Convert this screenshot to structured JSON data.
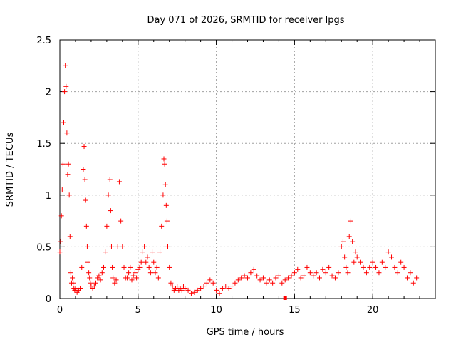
{
  "chart_data": {
    "type": "scatter",
    "title": "Day 071 of 2026, SRMTID for receiver lpgs",
    "xlabel": "GPS time / hours",
    "ylabel": "SRMTID / TECUs",
    "xlim": [
      0,
      24
    ],
    "ylim": [
      0,
      2.5
    ],
    "xticks": [
      0,
      5,
      10,
      15,
      20
    ],
    "yticks": [
      0,
      0.5,
      1,
      1.5,
      2,
      2.5
    ],
    "ytick_labels": [
      "0",
      "0.5",
      "1",
      "1.5",
      "2",
      "2.5"
    ],
    "grid": true,
    "marker": "+",
    "color": "#ff0000",
    "series": [
      {
        "name": "SRMTID",
        "x": [
          0.0,
          0.05,
          0.1,
          0.15,
          0.2,
          0.25,
          0.3,
          0.35,
          0.4,
          0.45,
          0.5,
          0.55,
          0.6,
          0.65,
          0.7,
          0.75,
          0.8,
          0.85,
          0.9,
          0.95,
          1.0,
          1.1,
          1.2,
          1.3,
          1.4,
          1.5,
          1.55,
          1.6,
          1.65,
          1.7,
          1.75,
          1.8,
          1.85,
          1.9,
          1.95,
          2.0,
          2.1,
          2.2,
          2.3,
          2.4,
          2.5,
          2.6,
          2.7,
          2.8,
          2.9,
          3.0,
          3.1,
          3.2,
          3.25,
          3.3,
          3.35,
          3.4,
          3.5,
          3.6,
          3.7,
          3.8,
          3.9,
          4.0,
          4.1,
          4.2,
          4.3,
          4.4,
          4.5,
          4.6,
          4.7,
          4.8,
          4.9,
          5.0,
          5.1,
          5.2,
          5.3,
          5.4,
          5.5,
          5.6,
          5.7,
          5.8,
          5.9,
          6.0,
          6.1,
          6.2,
          6.3,
          6.4,
          6.5,
          6.6,
          6.65,
          6.7,
          6.75,
          6.8,
          6.85,
          6.9,
          7.0,
          7.1,
          7.2,
          7.3,
          7.4,
          7.5,
          7.6,
          7.7,
          7.8,
          7.9,
          8.0,
          8.2,
          8.4,
          8.6,
          8.8,
          9.0,
          9.2,
          9.4,
          9.6,
          9.8,
          10.0,
          10.2,
          10.4,
          10.6,
          10.8,
          11.0,
          11.2,
          11.4,
          11.6,
          11.8,
          12.0,
          12.2,
          12.4,
          12.6,
          12.8,
          13.0,
          13.2,
          13.4,
          13.6,
          13.8,
          14.0,
          14.2,
          14.4,
          14.6,
          14.8,
          15.0,
          15.2,
          15.4,
          15.6,
          15.8,
          16.0,
          16.2,
          16.4,
          16.6,
          16.8,
          17.0,
          17.2,
          17.4,
          17.6,
          17.8,
          18.0,
          18.1,
          18.2,
          18.3,
          18.4,
          18.5,
          18.6,
          18.7,
          18.8,
          18.9,
          19.0,
          19.2,
          19.4,
          19.6,
          19.8,
          20.0,
          20.2,
          20.4,
          20.6,
          20.8,
          21.0,
          21.2,
          21.4,
          21.6,
          21.8,
          22.0,
          22.2,
          22.4,
          22.6,
          22.8
        ],
        "y": [
          0.45,
          0.55,
          0.8,
          1.05,
          1.3,
          1.7,
          2.0,
          2.25,
          2.05,
          1.6,
          1.2,
          1.3,
          1.0,
          0.6,
          0.25,
          0.15,
          0.2,
          0.15,
          0.1,
          0.08,
          0.1,
          0.06,
          0.08,
          0.1,
          0.3,
          1.25,
          1.47,
          1.15,
          0.95,
          0.7,
          0.5,
          0.35,
          0.25,
          0.2,
          0.15,
          0.12,
          0.1,
          0.12,
          0.15,
          0.2,
          0.22,
          0.18,
          0.25,
          0.3,
          0.45,
          0.7,
          1.0,
          1.15,
          0.85,
          0.5,
          0.3,
          0.2,
          0.15,
          0.18,
          0.5,
          1.13,
          0.75,
          0.5,
          0.3,
          0.2,
          0.2,
          0.25,
          0.3,
          0.18,
          0.22,
          0.25,
          0.2,
          0.28,
          0.3,
          0.35,
          0.45,
          0.5,
          0.35,
          0.4,
          0.3,
          0.25,
          0.45,
          0.35,
          0.25,
          0.3,
          0.2,
          0.45,
          0.7,
          1.0,
          1.35,
          1.3,
          1.1,
          0.9,
          0.75,
          0.5,
          0.3,
          0.15,
          0.12,
          0.08,
          0.1,
          0.12,
          0.08,
          0.1,
          0.08,
          0.12,
          0.1,
          0.08,
          0.05,
          0.06,
          0.08,
          0.1,
          0.12,
          0.15,
          0.18,
          0.15,
          0.08,
          0.05,
          0.1,
          0.12,
          0.1,
          0.12,
          0.15,
          0.18,
          0.2,
          0.22,
          0.2,
          0.25,
          0.28,
          0.22,
          0.18,
          0.2,
          0.15,
          0.18,
          0.15,
          0.2,
          0.22,
          0.15,
          0.18,
          0.2,
          0.22,
          0.25,
          0.28,
          0.2,
          0.22,
          0.3,
          0.25,
          0.22,
          0.25,
          0.2,
          0.28,
          0.25,
          0.3,
          0.22,
          0.2,
          0.25,
          0.5,
          0.55,
          0.4,
          0.3,
          0.25,
          0.6,
          0.75,
          0.55,
          0.35,
          0.45,
          0.4,
          0.35,
          0.3,
          0.25,
          0.3,
          0.35,
          0.3,
          0.25,
          0.35,
          0.3,
          0.45,
          0.4,
          0.3,
          0.25,
          0.35,
          0.3,
          0.2,
          0.25,
          0.15,
          0.2
        ]
      }
    ],
    "outliers": [
      {
        "x": 14.4,
        "y": 0.0
      }
    ]
  }
}
